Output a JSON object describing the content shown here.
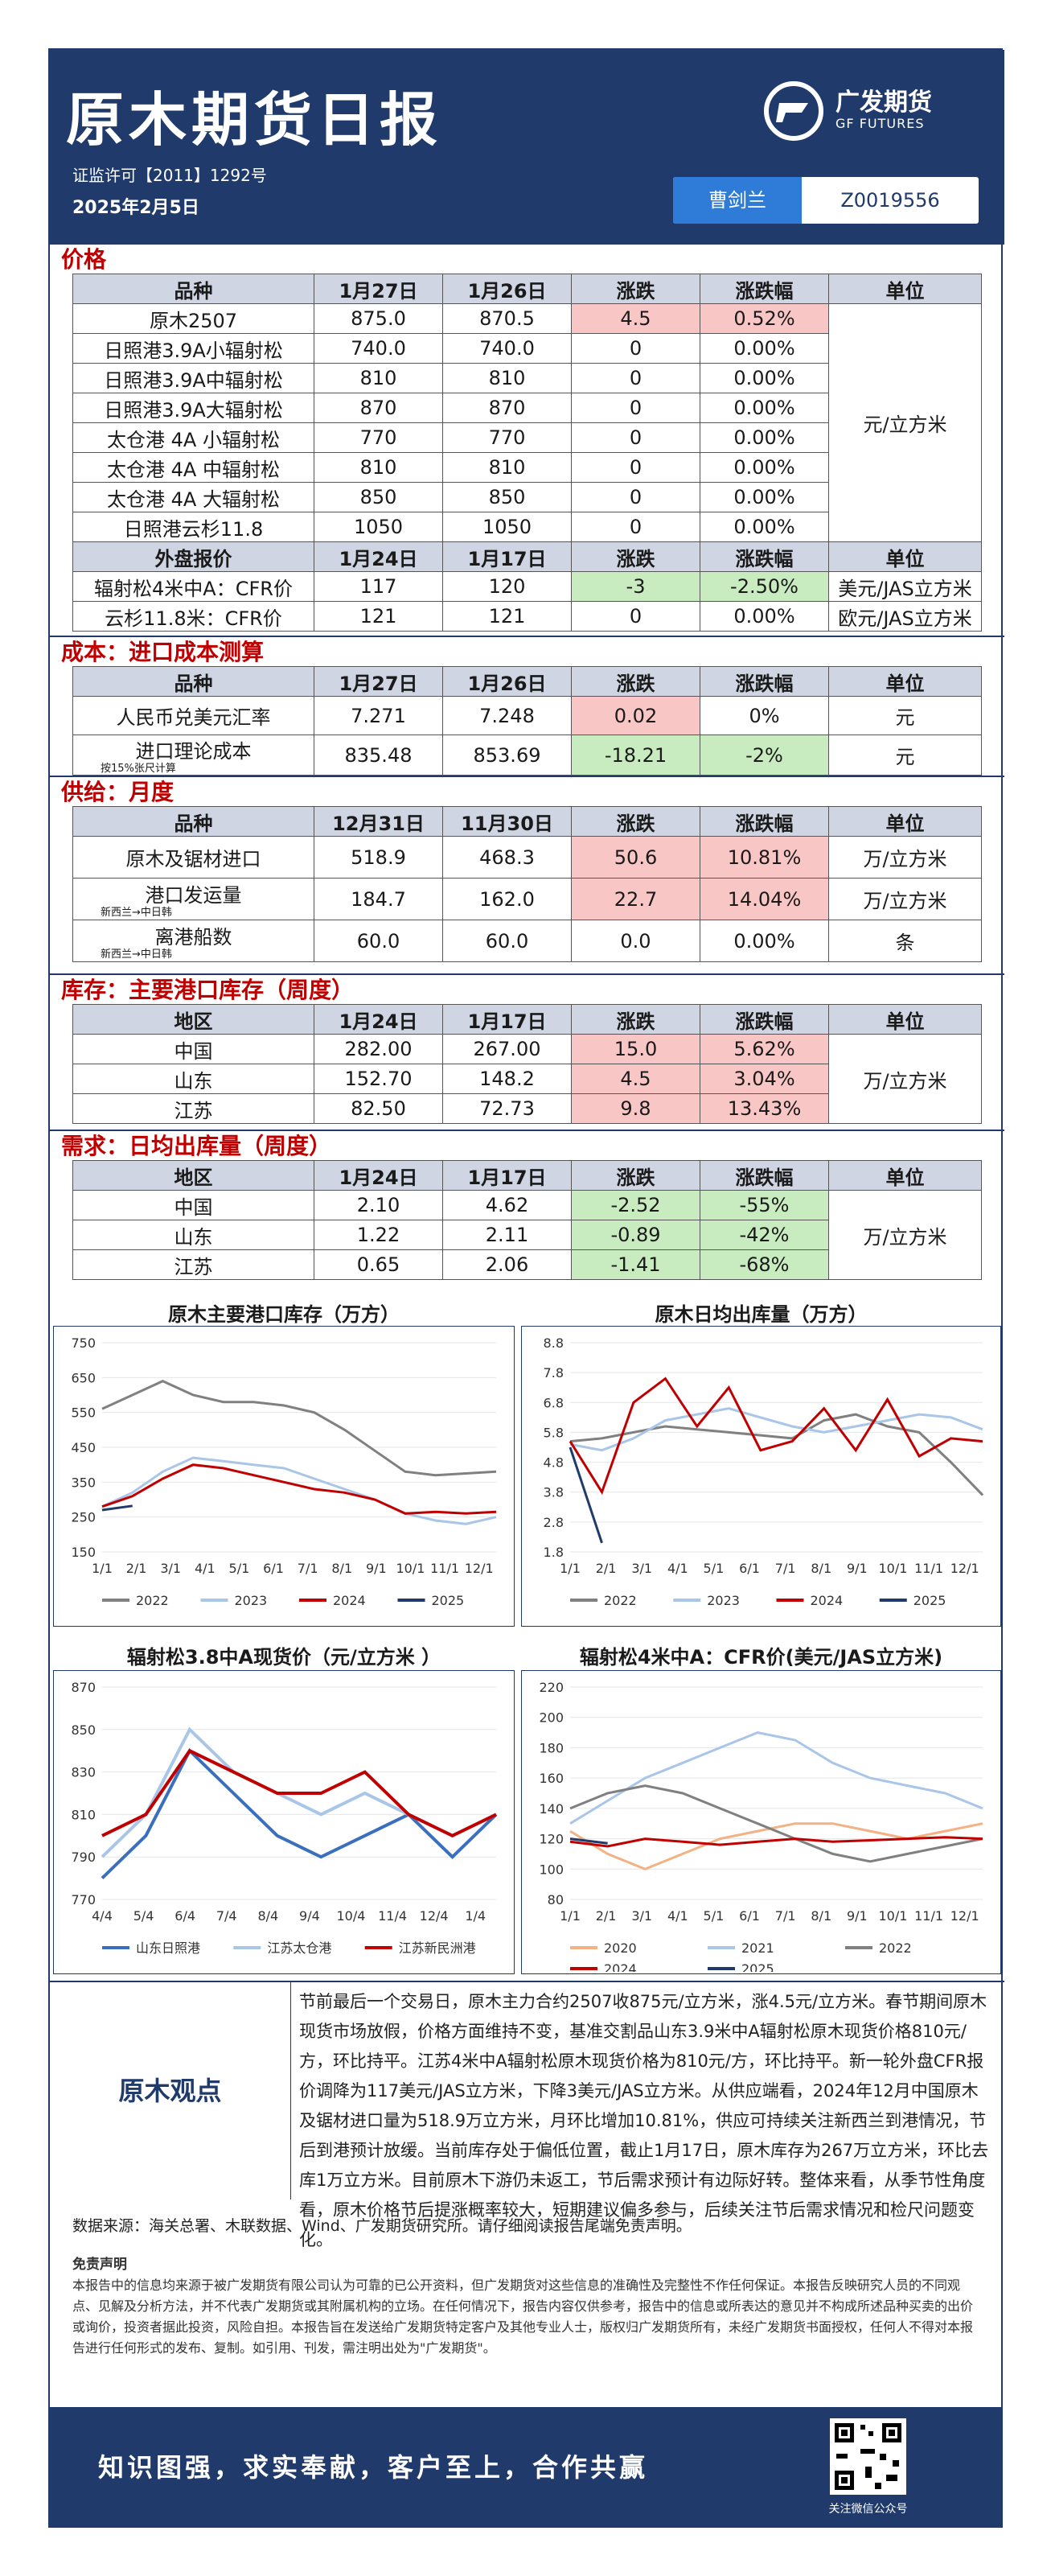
{
  "header": {
    "title": "原木期货日报",
    "license": "证监许可【2011】1292号",
    "date": "2025年2月5日",
    "logo_name": "广发期货",
    "logo_sub": "GF FUTURES",
    "author": "曹剑兰",
    "author_id": "Z0019556"
  },
  "sections": {
    "price": "价格",
    "cost": "成本：进口成本测算",
    "supply": "供给：月度",
    "inventory": "库存：主要港口库存（周度）",
    "demand": "需求：日均出库量（周度）"
  },
  "price_table": {
    "header": [
      "品种",
      "1月27日",
      "1月26日",
      "涨跌",
      "涨跌幅",
      "单位"
    ],
    "rows": [
      [
        "原木2507",
        "875.0",
        "870.5",
        "4.5",
        "0.52%"
      ],
      [
        "日照港3.9A小辐射松",
        "740.0",
        "740.0",
        "0",
        "0.00%"
      ],
      [
        "日照港3.9A中辐射松",
        "810",
        "810",
        "0",
        "0.00%"
      ],
      [
        "日照港3.9A大辐射松",
        "870",
        "870",
        "0",
        "0.00%"
      ],
      [
        "太仓港 4A 小辐射松",
        "770",
        "770",
        "0",
        "0.00%"
      ],
      [
        "太仓港 4A 中辐射松",
        "810",
        "810",
        "0",
        "0.00%"
      ],
      [
        "太仓港 4A 大辐射松",
        "850",
        "850",
        "0",
        "0.00%"
      ],
      [
        "日照港云杉11.8",
        "1050",
        "1050",
        "0",
        "0.00%"
      ]
    ],
    "unit": "元/立方米",
    "header2": [
      "外盘报价",
      "1月24日",
      "1月17日",
      "涨跌",
      "涨跌幅",
      "单位"
    ],
    "rows2": [
      [
        "辐射松4米中A：CFR价",
        "117",
        "120",
        "-3",
        "-2.50%",
        "美元/JAS立方米"
      ],
      [
        "云杉11.8米：CFR价",
        "121",
        "121",
        "0",
        "0.00%",
        "欧元/JAS立方米"
      ]
    ]
  },
  "cost_table": {
    "header": [
      "品种",
      "1月27日",
      "1月26日",
      "涨跌",
      "涨跌幅",
      "单位"
    ],
    "rows": [
      [
        "人民币兑美元汇率",
        "7.271",
        "7.248",
        "0.02",
        "0%",
        "元"
      ],
      [
        "进口理论成本",
        "835.48",
        "853.69",
        "-18.21",
        "-2%",
        "元"
      ]
    ],
    "note": "按15%张尺计算"
  },
  "supply_table": {
    "header": [
      "品种",
      "12月31日",
      "11月30日",
      "涨跌",
      "涨跌幅",
      "单位"
    ],
    "rows": [
      [
        "原木及锯材进口",
        "518.9",
        "468.3",
        "50.6",
        "10.81%",
        "万/立方米"
      ],
      [
        "港口发运量",
        "184.7",
        "162.0",
        "22.7",
        "14.04%",
        "万/立方米"
      ],
      [
        "离港船数",
        "60.0",
        "60.0",
        "0.0",
        "0.00%",
        "条"
      ]
    ],
    "note": "新西兰→中日韩"
  },
  "inventory_table": {
    "header": [
      "地区",
      "1月24日",
      "1月17日",
      "涨跌",
      "涨跌幅",
      "单位"
    ],
    "rows": [
      [
        "中国",
        "282.00",
        "267.00",
        "15.0",
        "5.62%"
      ],
      [
        "山东",
        "152.70",
        "148.2",
        "4.5",
        "3.04%"
      ],
      [
        "江苏",
        "82.50",
        "72.73",
        "9.8",
        "13.43%"
      ]
    ],
    "unit": "万/立方米"
  },
  "demand_table": {
    "header": [
      "地区",
      "1月24日",
      "1月17日",
      "涨跌",
      "涨跌幅",
      "单位"
    ],
    "rows": [
      [
        "中国",
        "2.10",
        "4.62",
        "-2.52",
        "-55%"
      ],
      [
        "山东",
        "1.22",
        "2.11",
        "-0.89",
        "-42%"
      ],
      [
        "江苏",
        "0.65",
        "2.06",
        "-1.41",
        "-68%"
      ]
    ],
    "unit": "万/立方米"
  },
  "chart_data": [
    {
      "type": "line",
      "title": "原木主要港口库存（万方）",
      "ylim": [
        150,
        750
      ],
      "yticks": [
        "750",
        "650",
        "550",
        "450",
        "350",
        "250",
        "150"
      ],
      "xticks": [
        "1/1",
        "2/1",
        "3/1",
        "4/1",
        "5/1",
        "6/1",
        "7/1",
        "8/1",
        "9/1",
        "10/1",
        "11/1",
        "12/1"
      ],
      "series": [
        {
          "name": "2022",
          "color": "#808080",
          "values": [
            560,
            600,
            640,
            600,
            580,
            580,
            570,
            550,
            500,
            440,
            380,
            370,
            375,
            380
          ]
        },
        {
          "name": "2023",
          "color": "#a9c6e8",
          "values": [
            280,
            320,
            380,
            420,
            410,
            400,
            390,
            360,
            330,
            300,
            260,
            240,
            230,
            250
          ]
        },
        {
          "name": "2024",
          "color": "#c00000",
          "values": [
            280,
            310,
            360,
            400,
            390,
            370,
            350,
            330,
            320,
            300,
            260,
            265,
            260,
            265
          ]
        },
        {
          "name": "2025",
          "color": "#1f3a6b",
          "values": [
            270,
            282
          ]
        }
      ]
    },
    {
      "type": "line",
      "title": "原木日均出库量（万方）",
      "ylim": [
        1.8,
        8.8
      ],
      "yticks": [
        "8.8",
        "7.8",
        "6.8",
        "5.8",
        "4.8",
        "3.8",
        "2.8",
        "1.8"
      ],
      "xticks": [
        "1/1",
        "2/1",
        "3/1",
        "4/1",
        "5/1",
        "6/1",
        "7/1",
        "8/1",
        "9/1",
        "10/1",
        "11/1",
        "12/1"
      ],
      "series": [
        {
          "name": "2022",
          "color": "#808080",
          "values": [
            5.5,
            5.6,
            5.8,
            6.0,
            5.9,
            5.8,
            5.7,
            5.6,
            6.2,
            6.4,
            6.0,
            5.8,
            4.8,
            3.7
          ]
        },
        {
          "name": "2023",
          "color": "#a9c6e8",
          "values": [
            5.4,
            5.2,
            5.6,
            6.2,
            6.4,
            6.6,
            6.3,
            6.0,
            5.8,
            6.0,
            6.2,
            6.4,
            6.3,
            5.9
          ]
        },
        {
          "name": "2024",
          "color": "#c00000",
          "values": [
            5.5,
            3.8,
            6.8,
            7.6,
            6.0,
            7.3,
            5.2,
            5.5,
            6.6,
            5.2,
            6.9,
            5.0,
            5.6,
            5.5
          ]
        },
        {
          "name": "2025",
          "color": "#1f3a6b",
          "values": [
            5.3,
            2.1
          ]
        }
      ]
    },
    {
      "type": "line",
      "title": "辐射松3.8中A现货价（元/立方米 ）",
      "ylim": [
        770,
        870
      ],
      "yticks": [
        "870",
        "850",
        "830",
        "810",
        "790",
        "770"
      ],
      "xticks": [
        "4/4",
        "5/4",
        "6/4",
        "7/4",
        "8/4",
        "9/4",
        "10/4",
        "11/4",
        "12/4",
        "1/4"
      ],
      "series": [
        {
          "name": "山东日照港",
          "color": "#3a6fbf",
          "values": [
            780,
            800,
            840,
            820,
            800,
            790,
            800,
            810,
            790,
            810
          ]
        },
        {
          "name": "江苏太仓港",
          "color": "#a9c6e8",
          "values": [
            790,
            810,
            850,
            830,
            820,
            810,
            820,
            810,
            800,
            810
          ]
        },
        {
          "name": "江苏新民洲港",
          "color": "#c00000",
          "values": [
            800,
            810,
            840,
            830,
            820,
            820,
            830,
            810,
            800,
            810
          ]
        }
      ]
    },
    {
      "type": "line",
      "title": "辐射松4米中A：CFR价(美元/JAS立方米)",
      "ylim": [
        80,
        220
      ],
      "yticks": [
        "220",
        "200",
        "180",
        "160",
        "140",
        "120",
        "100",
        "80"
      ],
      "xticks": [
        "1/1",
        "2/1",
        "3/1",
        "4/1",
        "5/1",
        "6/1",
        "7/1",
        "8/1",
        "9/1",
        "10/1",
        "11/1",
        "12/1"
      ],
      "series": [
        {
          "name": "2020",
          "color": "#f4b183",
          "values": [
            125,
            110,
            100,
            110,
            120,
            125,
            130,
            130,
            125,
            120,
            125,
            130
          ]
        },
        {
          "name": "2021",
          "color": "#a9c6e8",
          "values": [
            130,
            145,
            160,
            170,
            180,
            190,
            185,
            170,
            160,
            155,
            150,
            140
          ]
        },
        {
          "name": "2022",
          "color": "#808080",
          "values": [
            140,
            150,
            155,
            150,
            140,
            130,
            120,
            110,
            105,
            110,
            115,
            120
          ]
        },
        {
          "name": "2024",
          "color": "#c00000",
          "values": [
            118,
            115,
            120,
            118,
            116,
            118,
            120,
            118,
            119,
            120,
            121,
            120
          ]
        },
        {
          "name": "2025",
          "color": "#1f3a6b",
          "values": [
            120,
            117
          ]
        }
      ]
    }
  ],
  "view": {
    "label": "原木观点",
    "text": "节前最后一个交易日，原木主力合约2507收875元/立方米，涨4.5元/立方米。春节期间原木现货市场放假，价格方面维持不变，基准交割品山东3.9米中A辐射松原木现货价格810元/方，环比持平。江苏4米中A辐射松原木现货价格为810元/方，环比持平。新一轮外盘CFR报价调降为117美元/JAS立方米，下降3美元/JAS立方米。从供应端看，2024年12月中国原木及锯材进口量为518.9万立方米，月环比增加10.81%，供应可持续关注新西兰到港情况，节后到港预计放缓。当前库存处于偏低位置，截止1月17日，原木库存为267万立方米，环比去库1万立方米。目前原木下游仍未返工，节后需求预计有边际好转。整体来看，从季节性角度看，原木价格节后提涨概率较大，短期建议偏多参与，后续关注节后需求情况和检尺问题变化。"
  },
  "source": "数据来源：海关总署、木联数据、Wind、广发期货研究所。请仔细阅读报告尾端免责声明。",
  "disclaimer": {
    "title": "免责声明",
    "text": "本报告中的信息均来源于被广发期货有限公司认为可靠的已公开资料，但广发期货对这些信息的准确性及完整性不作任何保证。本报告反映研究人员的不同观点、见解及分析方法，并不代表广发期货或其附属机构的立场。在任何情况下，报告内容仅供参考，报告中的信息或所表达的意见并不构成所述品种买卖的出价或询价，投资者据此投资，风险自担。本报告旨在发送给广发期货特定客户及其他专业人士，版权归广发期货所有，未经广发期货书面授权，任何人不得对本报告进行任何形式的发布、复制。如引用、刊发，需注明出处为\"广发期货\"。"
  },
  "footer": {
    "slogan": "知识图强，求实奉献，客户至上，合作共赢",
    "qr_label": "关注微信公众号"
  }
}
